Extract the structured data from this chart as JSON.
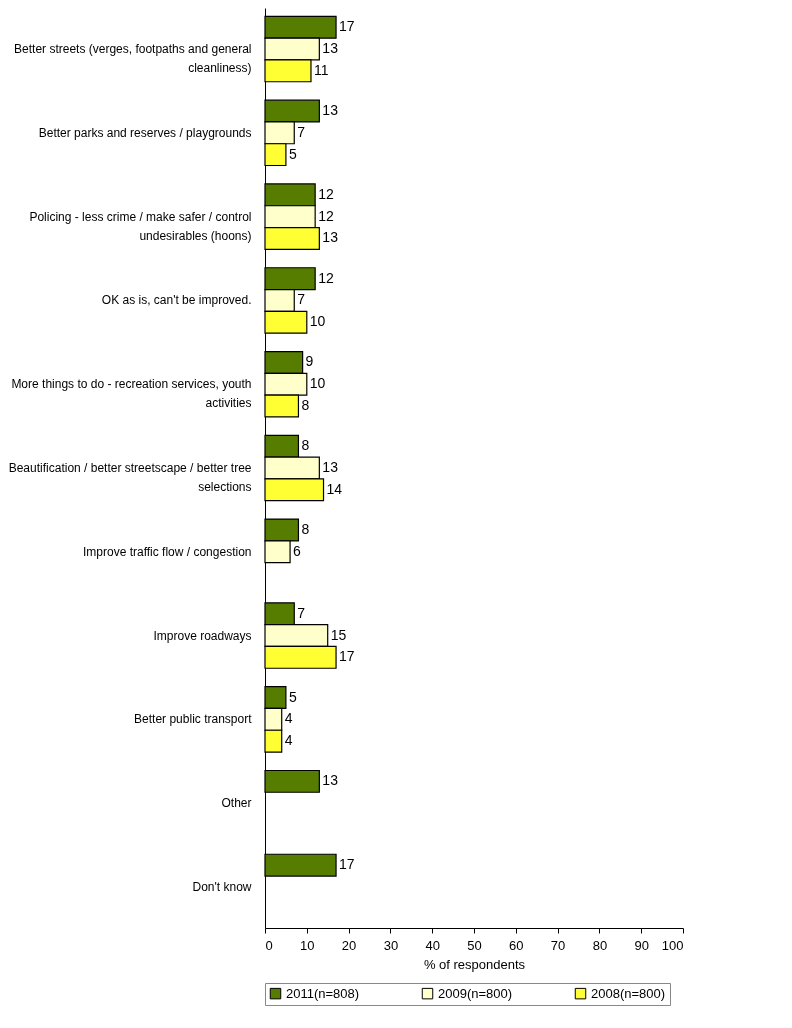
{
  "chart_data": {
    "type": "bar",
    "orientation": "horizontal",
    "xlabel": "% of respondents",
    "categories": [
      "Better streets (verges, footpaths and general cleanliness)",
      "Better parks and reserves / playgrounds",
      "Policing - less crime / make safer / control undesirables (hoons)",
      "OK as is, can't be improved.",
      "More things to do - recreation services, youth activities",
      "Beautification / better streetscape / better tree selections",
      "Improve traffic flow / congestion",
      "Improve roadways",
      "Better public transport",
      "Other",
      "Don't know"
    ],
    "series": [
      {
        "name": "2011(n=808)",
        "color": "#567d00",
        "values": [
          17,
          13,
          12,
          12,
          9,
          8,
          8,
          7,
          5,
          13,
          17
        ]
      },
      {
        "name": "2009(n=800)",
        "color": "#ffffcc",
        "values": [
          13,
          7,
          12,
          7,
          10,
          13,
          6,
          15,
          4,
          null,
          null
        ]
      },
      {
        "name": "2008(n=800)",
        "color": "#ffff33",
        "values": [
          11,
          5,
          13,
          10,
          8,
          14,
          null,
          17,
          4,
          null,
          null
        ]
      }
    ],
    "xlim": [
      0,
      100
    ],
    "xticks": [
      0,
      10,
      20,
      30,
      40,
      50,
      60,
      70,
      80,
      90,
      100
    ],
    "grid": false,
    "legend": "bottom",
    "data_labels": true
  }
}
